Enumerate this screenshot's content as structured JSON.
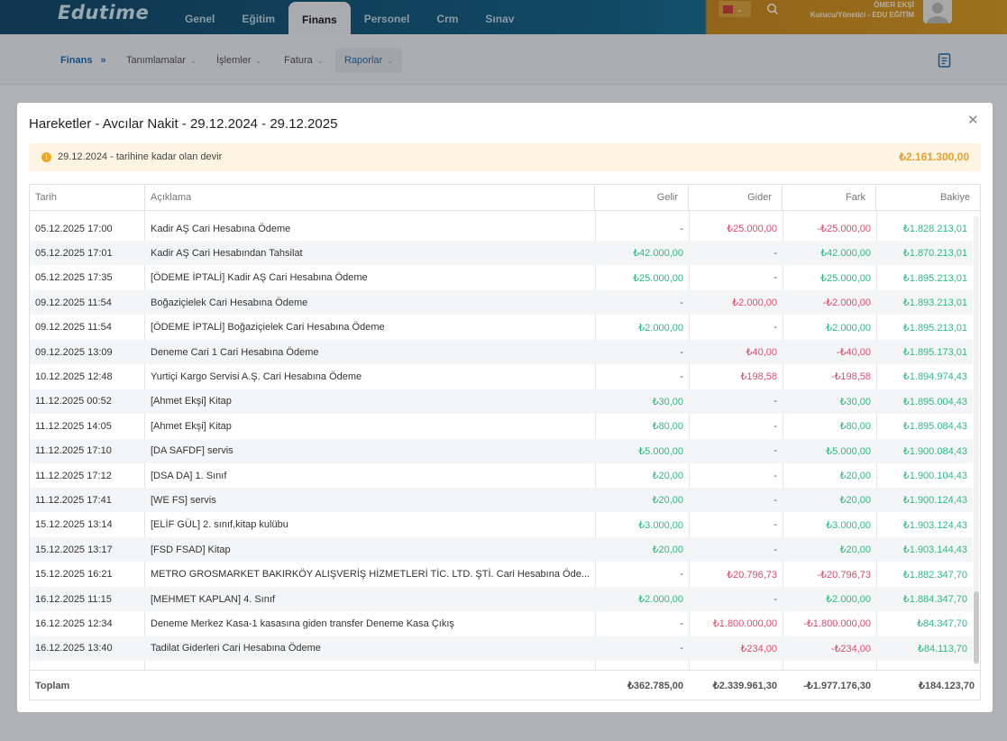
{
  "app": {
    "logo": "Edutime"
  },
  "nav": {
    "tabs": [
      "Genel",
      "Eğitim",
      "Finans",
      "Personel",
      "Crm",
      "Sınav"
    ],
    "active": "Finans"
  },
  "user": {
    "name": "ÖMER EKŞİ",
    "role": "Kurucu/Yönetici - EDU EĞİTİM"
  },
  "subnav": {
    "breadcrumb": "Finans",
    "items": [
      "Tanımlamalar",
      "İşlemler",
      "Fatura",
      "Raporlar"
    ],
    "selected": "Raporlar"
  },
  "modal": {
    "title": "Hareketler - Avcılar Nakit - 29.12.2024 - 29.12.2025",
    "devir_label": "29.12.2024 - tarihine kadar olan devir",
    "devir_amount": "₺2.161.300,00"
  },
  "table": {
    "headers": [
      "Tarih",
      "Açıklama",
      "Gelir",
      "Gider",
      "Fark",
      "Bakiye"
    ],
    "rows": [
      {
        "tarih": "05.12.2025 17:00",
        "aciklama": "Kadir AŞ Cari Hesabına Ödeme",
        "gelir": "-",
        "gider": "₺25.000,00",
        "fark": "-₺25.000,00",
        "bakiye": "₺1.828.213,01"
      },
      {
        "tarih": "05.12.2025 17:01",
        "aciklama": "Kadir AŞ Cari Hesabından Tahsilat",
        "gelir": "₺42.000,00",
        "gider": "-",
        "fark": "₺42.000,00",
        "bakiye": "₺1.870.213,01"
      },
      {
        "tarih": "05.12.2025 17:35",
        "aciklama": "[ÖDEME İPTALİ] Kadir AŞ Cari Hesabına Ödeme",
        "gelir": "₺25.000,00",
        "gider": "-",
        "fark": "₺25.000,00",
        "bakiye": "₺1.895.213,01"
      },
      {
        "tarih": "09.12.2025 11:54",
        "aciklama": "Boğaziçielek Cari Hesabına Ödeme",
        "gelir": "-",
        "gider": "₺2.000,00",
        "fark": "-₺2.000,00",
        "bakiye": "₺1.893.213,01"
      },
      {
        "tarih": "09.12.2025 11:54",
        "aciklama": "[ÖDEME İPTALİ] Boğaziçielek Cari Hesabına Ödeme",
        "gelir": "₺2.000,00",
        "gider": "-",
        "fark": "₺2.000,00",
        "bakiye": "₺1.895.213,01"
      },
      {
        "tarih": "09.12.2025 13:09",
        "aciklama": "Deneme Cari 1 Cari Hesabına Ödeme",
        "gelir": "-",
        "gider": "₺40,00",
        "fark": "-₺40,00",
        "bakiye": "₺1.895.173,01"
      },
      {
        "tarih": "10.12.2025 12:48",
        "aciklama": "Yurtiçi Kargo Servisi A.Ş. Cari Hesabına Ödeme",
        "gelir": "-",
        "gider": "₺198,58",
        "fark": "-₺198,58",
        "bakiye": "₺1.894.974,43"
      },
      {
        "tarih": "11.12.2025 00:52",
        "aciklama": "[Ahmet Ekşi] Kitap",
        "gelir": "₺30,00",
        "gider": "-",
        "fark": "₺30,00",
        "bakiye": "₺1.895.004,43"
      },
      {
        "tarih": "11.12.2025 14:05",
        "aciklama": "[Ahmet Ekşi] Kitap",
        "gelir": "₺80,00",
        "gider": "-",
        "fark": "₺80,00",
        "bakiye": "₺1.895.084,43"
      },
      {
        "tarih": "11.12.2025 17:10",
        "aciklama": "[DA SAFDF] servis",
        "gelir": "₺5.000,00",
        "gider": "-",
        "fark": "₺5.000,00",
        "bakiye": "₺1.900.084,43"
      },
      {
        "tarih": "11.12.2025 17:12",
        "aciklama": "[DSA DA] 1. Sınıf",
        "gelir": "₺20,00",
        "gider": "-",
        "fark": "₺20,00",
        "bakiye": "₺1.900.104,43"
      },
      {
        "tarih": "11.12.2025 17:41",
        "aciklama": "[WE FS] servis",
        "gelir": "₺20,00",
        "gider": "-",
        "fark": "₺20,00",
        "bakiye": "₺1.900.124,43"
      },
      {
        "tarih": "15.12.2025 13:14",
        "aciklama": "[ELİF GÜL] 2. sınıf,kitap kulübu",
        "gelir": "₺3.000,00",
        "gider": "-",
        "fark": "₺3.000,00",
        "bakiye": "₺1.903.124,43"
      },
      {
        "tarih": "15.12.2025 13:17",
        "aciklama": "[FSD FSAD] Kitap",
        "gelir": "₺20,00",
        "gider": "-",
        "fark": "₺20,00",
        "bakiye": "₺1.903.144,43"
      },
      {
        "tarih": "15.12.2025 16:21",
        "aciklama": "METRO GROSMARKET BAKIRKÖY ALIŞVERİŞ HİZMETLERİ TİC. LTD. ŞTİ. Cari Hesabına Öde...",
        "gelir": "-",
        "gider": "₺20.796,73",
        "fark": "-₺20.796,73",
        "bakiye": "₺1.882.347,70"
      },
      {
        "tarih": "16.12.2025 11:15",
        "aciklama": "[MEHMET KAPLAN] 4. Sınıf",
        "gelir": "₺2.000,00",
        "gider": "-",
        "fark": "₺2.000,00",
        "bakiye": "₺1.884.347,70"
      },
      {
        "tarih": "16.12.2025 12:34",
        "aciklama": "Deneme Merkez Kasa-1 kasasına giden transfer Deneme Kasa Çıkış",
        "gelir": "-",
        "gider": "₺1.800.000,00",
        "fark": "-₺1.800.000,00",
        "bakiye": "₺84.347,70"
      },
      {
        "tarih": "16.12.2025 13:40",
        "aciklama": "Tadilat Giderleri Cari Hesabına Ödeme",
        "gelir": "-",
        "gider": "₺234,00",
        "fark": "-₺234,00",
        "bakiye": "₺84.113,70"
      }
    ],
    "footer": {
      "label": "Toplam",
      "gelir": "₺362.785,00",
      "gider": "₺2.339.961,30",
      "fark": "-₺1.977.176,30",
      "bakiye": "₺184.123,70"
    }
  },
  "colors": {
    "income": "#2fb985",
    "expense": "#e04b6f",
    "accent": "#1f6fb5",
    "devir": "#e6a12d"
  }
}
